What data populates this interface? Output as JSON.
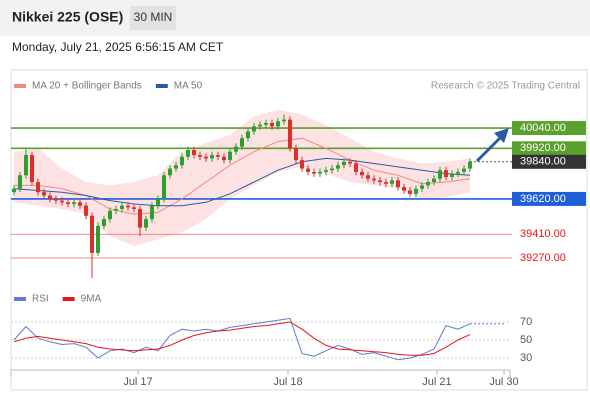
{
  "header": {
    "title": "Nikkei 225 (OSE)",
    "interval": "30 MIN",
    "timestamp": "Monday, July 21, 2025 6:56:15 AM CET",
    "credit": "Research © 2025 Trading Central"
  },
  "chart_data": [
    {
      "type": "candlestick",
      "up_color": "#2e9e2e",
      "down_color": "#d9302c",
      "open": [
        39660,
        39680,
        39760,
        39880,
        39720,
        39660,
        39640,
        39620,
        39610,
        39600,
        39590,
        39600,
        39580,
        39520,
        39300,
        39460,
        39500,
        39550,
        39560,
        39580,
        39570,
        39560,
        39450,
        39500,
        39580,
        39620,
        39760,
        39800,
        39820,
        39870,
        39910,
        39880,
        39870,
        39860,
        39880,
        39870,
        39850,
        39900,
        39930,
        39980,
        40020,
        40050,
        40060,
        40070,
        40050,
        40080,
        40090,
        39920,
        39850,
        39800,
        39780,
        39770,
        39780,
        39790,
        39800,
        39820,
        39840,
        39830,
        39780,
        39760,
        39740,
        39730,
        39720,
        39710,
        39730,
        39690,
        39670,
        39650,
        39680,
        39700,
        39720,
        39740,
        39790,
        39750,
        39770,
        39780,
        39800
      ],
      "high": [
        39700,
        39780,
        39920,
        39900,
        39740,
        39680,
        39660,
        39640,
        39630,
        39620,
        39620,
        39620,
        39600,
        39540,
        39480,
        39520,
        39570,
        39580,
        39600,
        39600,
        39590,
        39580,
        39520,
        39600,
        39640,
        39780,
        39820,
        39840,
        39890,
        39930,
        39930,
        39900,
        39890,
        39900,
        39900,
        39890,
        39920,
        39950,
        40000,
        40040,
        40070,
        40080,
        40090,
        40090,
        40100,
        40120,
        40110,
        39940,
        39870,
        39820,
        39800,
        39800,
        39810,
        39820,
        39840,
        39860,
        39860,
        39850,
        39800,
        39780,
        39760,
        39750,
        39740,
        39750,
        39750,
        39710,
        39690,
        39700,
        39720,
        39740,
        39760,
        39810,
        39810,
        39790,
        39800,
        39820,
        39860
      ],
      "low": [
        39640,
        39660,
        39740,
        39700,
        39640,
        39620,
        39600,
        39590,
        39580,
        39570,
        39570,
        39560,
        39500,
        39150,
        39280,
        39440,
        39480,
        39530,
        39540,
        39550,
        39540,
        39400,
        39430,
        39480,
        39560,
        39600,
        39740,
        39780,
        39800,
        39850,
        39860,
        39850,
        39840,
        39840,
        39850,
        39830,
        39830,
        39880,
        39910,
        39960,
        40000,
        40030,
        40040,
        40030,
        40030,
        40060,
        39900,
        39830,
        39780,
        39760,
        39750,
        39750,
        39760,
        39770,
        39780,
        39800,
        39810,
        39760,
        39740,
        39720,
        39710,
        39700,
        39690,
        39690,
        39670,
        39650,
        39630,
        39630,
        39660,
        39680,
        39700,
        39720,
        39730,
        39730,
        39750,
        39760,
        39780
      ],
      "close": [
        39680,
        39760,
        39880,
        39720,
        39660,
        39640,
        39620,
        39610,
        39600,
        39590,
        39600,
        39580,
        39520,
        39300,
        39460,
        39500,
        39550,
        39560,
        39580,
        39570,
        39560,
        39450,
        39500,
        39580,
        39620,
        39760,
        39800,
        39820,
        39870,
        39910,
        39880,
        39870,
        39860,
        39880,
        39870,
        39850,
        39900,
        39930,
        39980,
        40020,
        40050,
        40060,
        40070,
        40050,
        40080,
        40090,
        39920,
        39850,
        39800,
        39780,
        39770,
        39780,
        39790,
        39800,
        39820,
        39840,
        39830,
        39780,
        39760,
        39740,
        39730,
        39720,
        39710,
        39730,
        39690,
        39670,
        39650,
        39680,
        39700,
        39720,
        39740,
        39790,
        39750,
        39770,
        39780,
        39800,
        39840
      ],
      "xlim": [
        -0.33,
        82.67
      ],
      "xticks": [
        {
          "value": 20.67,
          "label": "Jul 17"
        },
        {
          "value": 45.67,
          "label": "Jul 18"
        },
        {
          "value": 70.5,
          "label": "Jul 21"
        },
        {
          "value": 81.67,
          "label": "Jul 30"
        }
      ],
      "ylim": [
        39080,
        40236
      ],
      "levels": [
        {
          "value": 40040,
          "label": "40040.00",
          "color": "#5aa02c",
          "boxed": true
        },
        {
          "value": 39920,
          "label": "39920.00",
          "color": "#5aa02c",
          "boxed": true
        },
        {
          "value": 39840,
          "label": "39840.00",
          "color": "#333333",
          "boxed": true,
          "dotted": true
        },
        {
          "value": 39620,
          "label": "39620.00",
          "color": "#1f5fd6",
          "boxed": true
        },
        {
          "value": 39410,
          "label": "39410.00",
          "color": "#e8141c",
          "boxed": false
        },
        {
          "value": 39270,
          "label": "39270.00",
          "color": "#e8141c",
          "boxed": false
        }
      ],
      "series": [
        {
          "name": "MA 20 + Bollinger Bands",
          "color": "#f08a80",
          "band_color": "#fbd6d6",
          "x": [
            0,
            4,
            8,
            12,
            16,
            20,
            24,
            28,
            32,
            36,
            40,
            44,
            48,
            52,
            56,
            60,
            64,
            68,
            72,
            76
          ],
          "values": [
            39700,
            39700,
            39680,
            39640,
            39560,
            39530,
            39540,
            39620,
            39720,
            39820,
            39900,
            39960,
            39980,
            39920,
            39850,
            39790,
            39760,
            39710,
            39720,
            39740
          ],
          "upper": [
            39900,
            39920,
            39800,
            39720,
            39700,
            39720,
            39760,
            39900,
            39950,
            40000,
            40110,
            40150,
            40120,
            40060,
            39980,
            39900,
            39860,
            39830,
            39840,
            39860
          ],
          "lower": [
            39600,
            39580,
            39560,
            39530,
            39400,
            39340,
            39380,
            39420,
            39500,
            39620,
            39700,
            39780,
            39810,
            39770,
            39720,
            39700,
            39680,
            39620,
            39630,
            39660
          ]
        },
        {
          "name": "MA 50",
          "color": "#2b5aa0",
          "x": [
            0,
            4,
            8,
            12,
            16,
            20,
            24,
            28,
            32,
            36,
            40,
            44,
            48,
            52,
            56,
            60,
            64,
            68,
            72,
            76
          ],
          "values": [
            39680,
            39670,
            39660,
            39640,
            39610,
            39590,
            39580,
            39580,
            39600,
            39650,
            39720,
            39790,
            39840,
            39860,
            39850,
            39830,
            39810,
            39790,
            39770,
            39760
          ]
        }
      ]
    },
    {
      "type": "line",
      "xlim": [
        -0.33,
        82.67
      ],
      "ylim": [
        20,
        80
      ],
      "yticks": [
        70,
        50,
        30
      ],
      "series": [
        {
          "name": "RSI",
          "color": "#5b7bd5",
          "x": [
            0,
            2,
            4,
            6,
            8,
            10,
            12,
            14,
            16,
            18,
            20,
            22,
            24,
            26,
            28,
            30,
            32,
            34,
            36,
            38,
            40,
            42,
            44,
            46,
            48,
            50,
            52,
            54,
            56,
            58,
            60,
            62,
            64,
            66,
            68,
            70,
            72,
            74,
            76
          ],
          "values": [
            50,
            65,
            52,
            48,
            45,
            46,
            42,
            30,
            38,
            40,
            36,
            42,
            38,
            55,
            62,
            60,
            62,
            60,
            64,
            66,
            68,
            70,
            72,
            74,
            35,
            32,
            38,
            44,
            40,
            34,
            36,
            32,
            28,
            30,
            34,
            40,
            66,
            62,
            68
          ]
        },
        {
          "name": "9MA",
          "color": "#e8141c",
          "x": [
            0,
            2,
            4,
            6,
            8,
            10,
            12,
            14,
            16,
            18,
            20,
            22,
            24,
            26,
            28,
            30,
            32,
            34,
            36,
            38,
            40,
            42,
            44,
            46,
            48,
            50,
            52,
            54,
            56,
            58,
            60,
            62,
            64,
            66,
            68,
            70,
            72,
            74,
            76
          ],
          "values": [
            48,
            52,
            54,
            52,
            50,
            48,
            46,
            42,
            40,
            39,
            38,
            39,
            40,
            44,
            50,
            55,
            58,
            60,
            61,
            63,
            65,
            66,
            68,
            70,
            62,
            52,
            44,
            40,
            39,
            38,
            37,
            36,
            34,
            33,
            33,
            35,
            42,
            50,
            56
          ]
        }
      ]
    }
  ]
}
